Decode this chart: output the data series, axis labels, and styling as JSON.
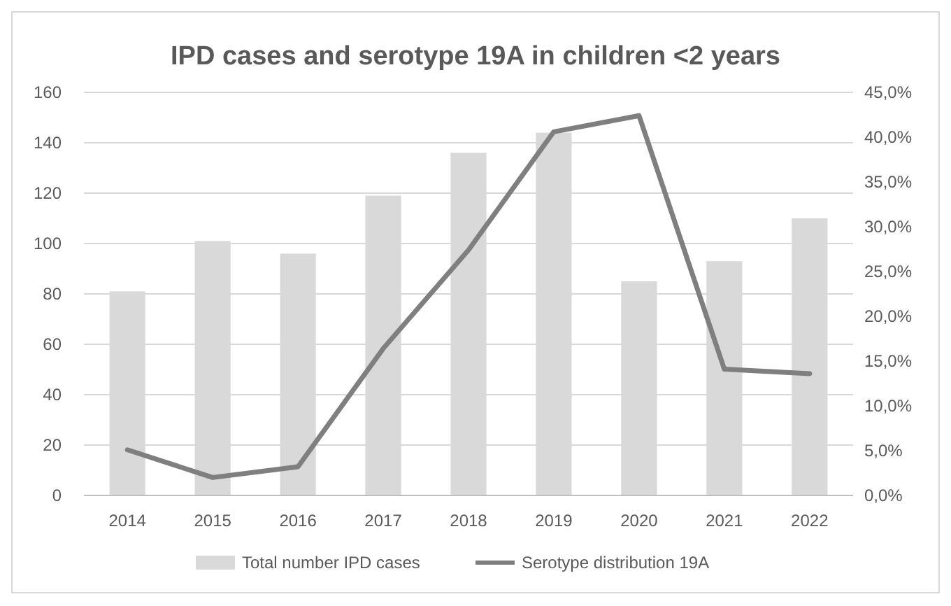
{
  "chart_data": {
    "type": "bar",
    "title": "IPD cases and serotype 19A in children <2 years",
    "categories": [
      "2014",
      "2015",
      "2016",
      "2017",
      "2018",
      "2019",
      "2020",
      "2021",
      "2022"
    ],
    "series": [
      {
        "name": "Total number IPD cases",
        "color": "#d9d9d9",
        "values": [
          81,
          101,
          96,
          119,
          136,
          144,
          85,
          93,
          110
        ]
      },
      {
        "name": "Serotype distribution 19A",
        "type": "line",
        "axis": "y2",
        "color": "#7f7f7f",
        "values": [
          5.1,
          2.0,
          3.2,
          16.4,
          27.4,
          40.6,
          42.4,
          14.1,
          13.6
        ]
      }
    ],
    "ylim": [
      0,
      160
    ],
    "yticks": [
      0,
      20,
      40,
      60,
      80,
      100,
      120,
      140,
      160
    ],
    "y2lim": [
      0,
      45
    ],
    "y2ticks": [
      {
        "value": 0,
        "label": "0,0%"
      },
      {
        "value": 5,
        "label": "5,0%"
      },
      {
        "value": 10,
        "label": "10,0%"
      },
      {
        "value": 15,
        "label": "15,0%"
      },
      {
        "value": 20,
        "label": "20,0%"
      },
      {
        "value": 25,
        "label": "25,0%"
      },
      {
        "value": 30,
        "label": "30,0%"
      },
      {
        "value": 35,
        "label": "35,0%"
      },
      {
        "value": 40,
        "label": "40,0%"
      },
      {
        "value": 45,
        "label": "45,0%"
      }
    ],
    "grid": "y",
    "legend": "bottom",
    "marker": "none",
    "line_style": "solid"
  }
}
